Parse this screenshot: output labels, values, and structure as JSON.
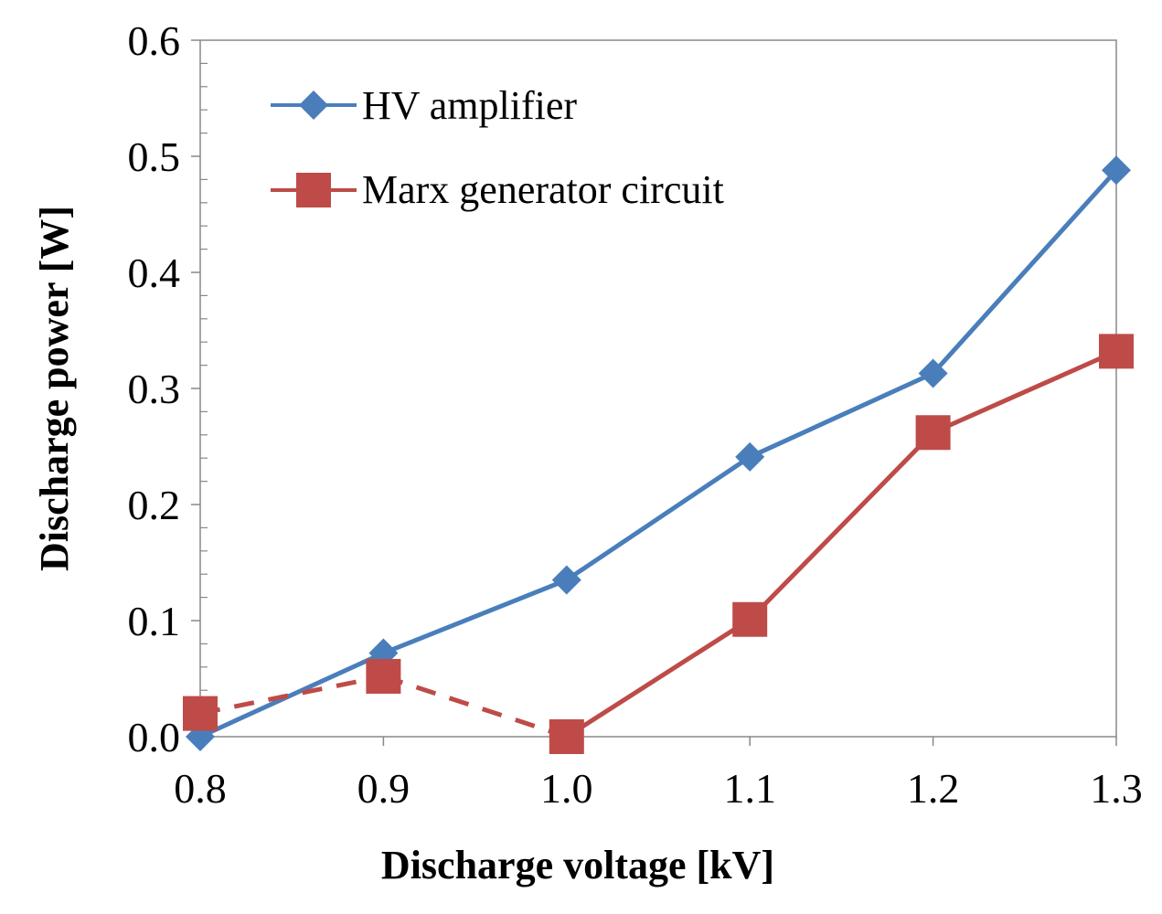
{
  "chart_data": {
    "type": "line",
    "title": "",
    "xlabel": "Discharge voltage [kV]",
    "ylabel": "Discharge power [W]",
    "xlim": [
      0.8,
      1.3
    ],
    "ylim": [
      0,
      0.6
    ],
    "x_ticks": [
      "0.8",
      "0.9",
      "1.0",
      "1.1",
      "1.2",
      "1.3"
    ],
    "y_ticks": [
      "0.0",
      "0.1",
      "0.2",
      "0.3",
      "0.4",
      "0.5",
      "0.6"
    ],
    "grid": false,
    "legend_position": "top-left",
    "series": [
      {
        "name": "HV amplifier",
        "color": "#4a7ebb",
        "marker": "diamond",
        "x": [
          0.8,
          0.9,
          1.0,
          1.1,
          1.2,
          1.3
        ],
        "values": [
          0.0,
          0.072,
          0.135,
          0.241,
          0.313,
          0.488
        ]
      },
      {
        "name": "Marx generator circuit",
        "color": "#be4b48",
        "marker": "square",
        "x": [
          0.8,
          0.9,
          1.0,
          1.1,
          1.2,
          1.3
        ],
        "values": [
          0.02,
          0.052,
          0.0,
          0.101,
          0.262,
          0.332
        ],
        "dashed_segments": [
          0,
          1
        ]
      }
    ]
  }
}
